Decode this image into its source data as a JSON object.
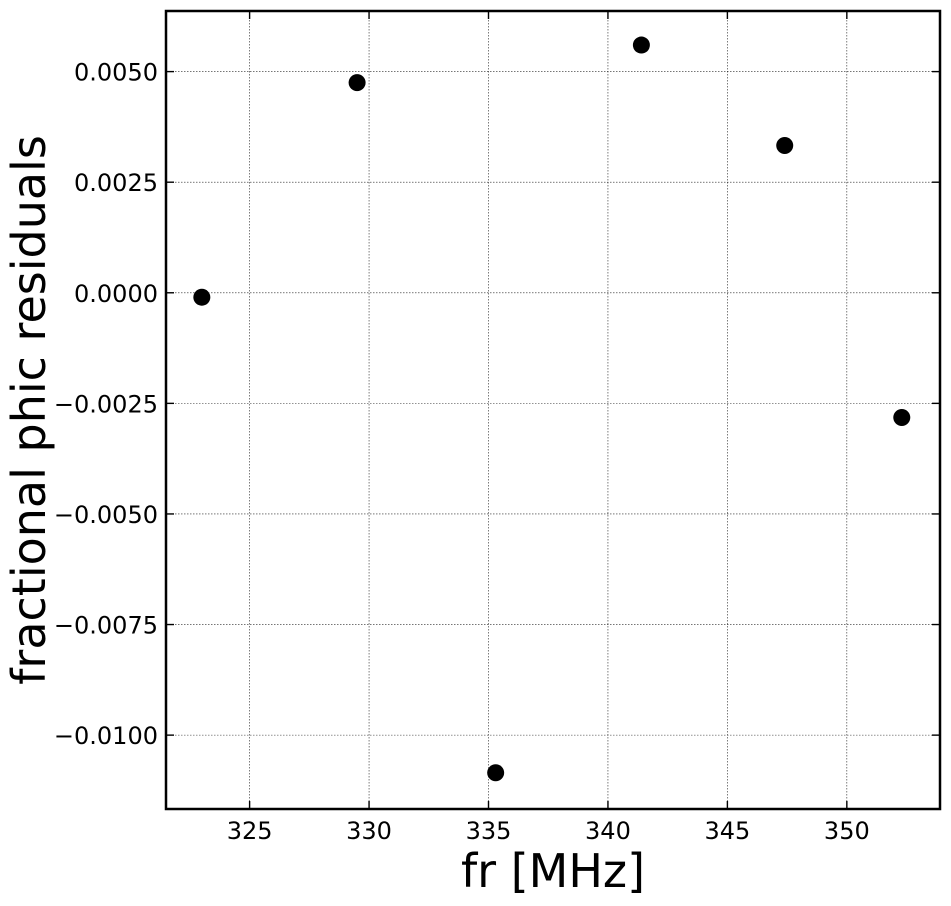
{
  "chart_data": {
    "type": "scatter",
    "title": "",
    "xlabel": "fr [MHz]",
    "ylabel": "fractional phic residuals",
    "xlim": [
      321.5,
      353.9
    ],
    "ylim": [
      -0.01167,
      0.00637
    ],
    "xticks": [
      325,
      330,
      335,
      340,
      345,
      350
    ],
    "xtick_labels": [
      "325",
      "330",
      "335",
      "340",
      "345",
      "350"
    ],
    "yticks": [
      0.005,
      0.0025,
      0.0,
      -0.0025,
      -0.005,
      -0.0075,
      -0.01
    ],
    "ytick_labels": [
      "0.0050",
      "0.0025",
      "0.0000",
      "−0.0025",
      "−0.0050",
      "−0.0075",
      "−0.0100"
    ],
    "grid": true,
    "series": [
      {
        "color": "#000000",
        "x": [
          323.0,
          329.5,
          335.3,
          341.4,
          347.4,
          352.3
        ],
        "y": [
          -0.0001,
          0.00475,
          -0.01085,
          0.0056,
          0.00333,
          -0.00282
        ]
      }
    ]
  }
}
